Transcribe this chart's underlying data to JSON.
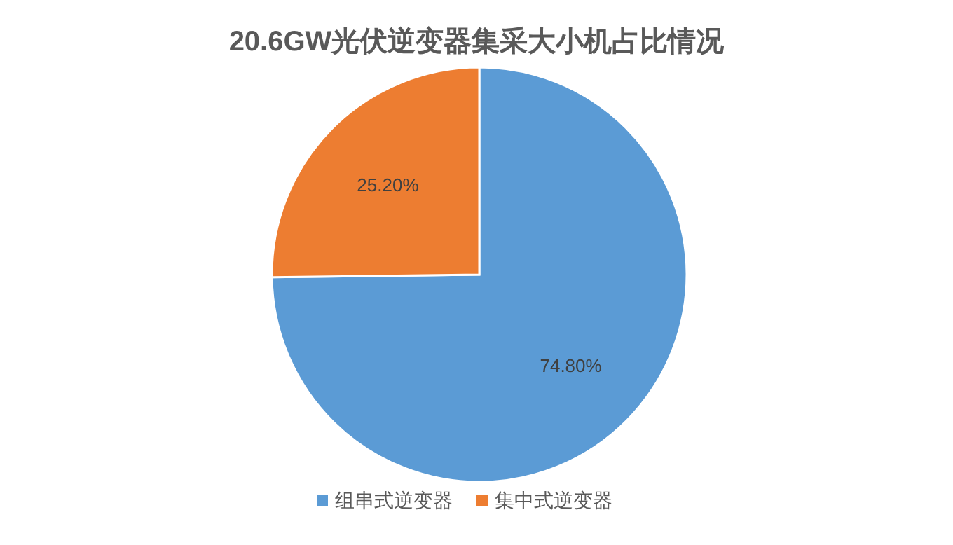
{
  "chart_data": {
    "type": "pie",
    "title": "20.6GW光伏逆变器集采大小机占比情况",
    "categories": [
      "组串式逆变器",
      "集中式逆变器"
    ],
    "values": [
      74.8,
      25.2
    ],
    "colors": [
      "#5b9bd5",
      "#ed7d31"
    ],
    "value_labels": [
      "74.80%",
      "25.20%"
    ],
    "legend": "bottom"
  }
}
